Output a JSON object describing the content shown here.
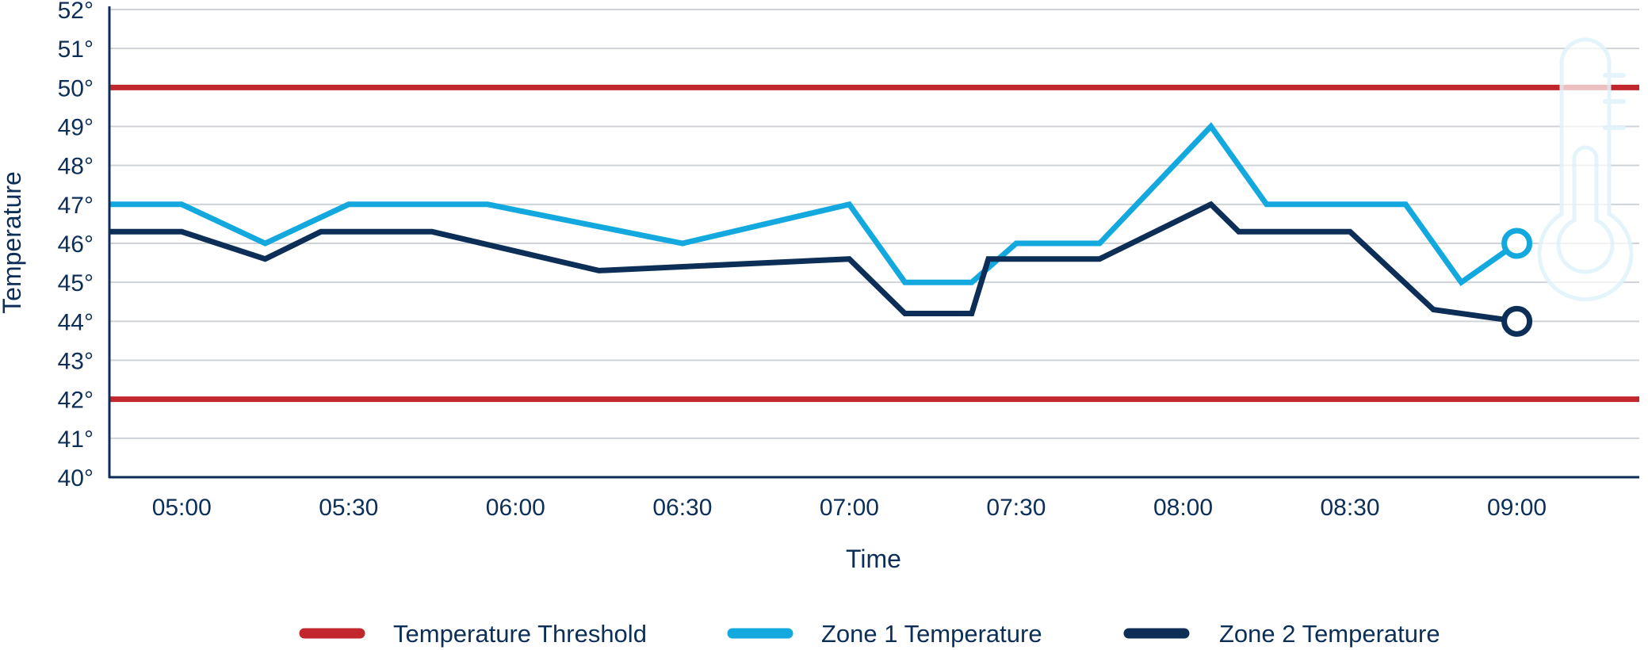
{
  "chart_data": {
    "type": "line",
    "xlabel": "Time",
    "ylabel": "Temperature",
    "ylim": [
      40,
      52
    ],
    "xlim": [
      "04:47",
      "09:22"
    ],
    "y_ticks": [
      "40°",
      "41°",
      "42°",
      "43°",
      "44°",
      "45°",
      "46°",
      "47°",
      "48°",
      "49°",
      "50°",
      "51°",
      "52°"
    ],
    "x_ticks": [
      "05:00",
      "05:30",
      "06:00",
      "06:30",
      "07:00",
      "07:30",
      "08:00",
      "08:30",
      "09:00"
    ],
    "grid": true,
    "legend_position": "bottom",
    "thresholds": [
      {
        "name": "Temperature Threshold",
        "value": 50,
        "color": "#c1272d"
      },
      {
        "name": "Temperature Threshold",
        "value": 42,
        "color": "#c1272d"
      }
    ],
    "series": [
      {
        "name": "Zone 1 Temperature",
        "color": "#13a9de",
        "x": [
          "04:47",
          "05:00",
          "05:15",
          "05:30",
          "05:45",
          "05:55",
          "06:30",
          "07:00",
          "07:10",
          "07:22",
          "07:30",
          "07:45",
          "08:05",
          "08:15",
          "08:40",
          "08:50",
          "09:00"
        ],
        "values": [
          47,
          47,
          46,
          47,
          47,
          47,
          46,
          47,
          45,
          45,
          46,
          46,
          49,
          47,
          47,
          45,
          46
        ]
      },
      {
        "name": "Zone 2 Temperature",
        "color": "#0d2f57",
        "x": [
          "04:47",
          "05:00",
          "05:15",
          "05:25",
          "05:45",
          "06:15",
          "07:00",
          "07:10",
          "07:22",
          "07:25",
          "07:45",
          "08:05",
          "08:10",
          "08:30",
          "08:45",
          "09:00"
        ],
        "values": [
          46.3,
          46.3,
          45.6,
          46.3,
          46.3,
          45.3,
          45.6,
          44.2,
          44.2,
          45.6,
          45.6,
          47,
          46.3,
          46.3,
          44.3,
          44
        ]
      }
    ]
  },
  "legend": {
    "threshold_label": "Temperature Threshold",
    "zone1_label": "Zone 1 Temperature",
    "zone2_label": "Zone 2 Temperature"
  },
  "icons": {
    "thermometer": "thermometer-icon"
  }
}
